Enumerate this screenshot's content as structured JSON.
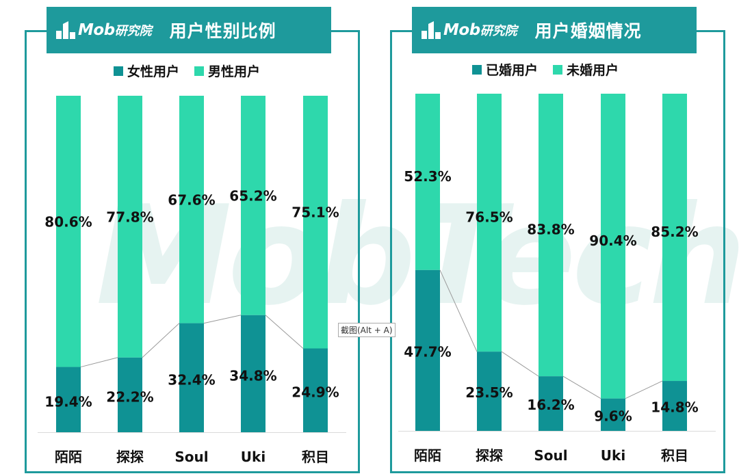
{
  "brand": {
    "logo_text": "Mob",
    "logo_sub": "研究院"
  },
  "watermark": "MobTech",
  "tooltip": "截图(Alt + A)",
  "colors": {
    "dark": "#0f9294",
    "light": "#2ed8ac",
    "frame": "#1e9a9c"
  },
  "chart_data": [
    {
      "type": "bar",
      "stacked": true,
      "title": "用户性别比例",
      "categories": [
        "陌陌",
        "探探",
        "Soul",
        "Uki",
        "积目"
      ],
      "series": [
        {
          "name": "女性用户",
          "values": [
            19.4,
            22.2,
            32.4,
            34.8,
            24.9
          ],
          "labels": [
            "19.4%",
            "22.2%",
            "32.4%",
            "34.8%",
            "24.9%"
          ]
        },
        {
          "name": "男性用户",
          "values": [
            80.6,
            77.8,
            67.6,
            65.2,
            75.1
          ],
          "labels": [
            "80.6%",
            "77.8%",
            "67.6%",
            "65.2%",
            "75.1%"
          ]
        }
      ],
      "ylim": [
        0,
        100
      ],
      "legend": "top"
    },
    {
      "type": "bar",
      "stacked": true,
      "title": "用户婚姻情况",
      "categories": [
        "陌陌",
        "探探",
        "Soul",
        "Uki",
        "积目"
      ],
      "series": [
        {
          "name": "已婚用户",
          "values": [
            47.7,
            23.5,
            16.2,
            9.6,
            14.8
          ],
          "labels": [
            "47.7%",
            "23.5%",
            "16.2%",
            "9.6%",
            "14.8%"
          ]
        },
        {
          "name": "未婚用户",
          "values": [
            52.3,
            76.5,
            83.8,
            90.4,
            85.2
          ],
          "labels": [
            "52.3%",
            "76.5%",
            "83.8%",
            "90.4%",
            "85.2%"
          ]
        }
      ],
      "ylim": [
        0,
        100
      ],
      "legend": "top"
    }
  ]
}
